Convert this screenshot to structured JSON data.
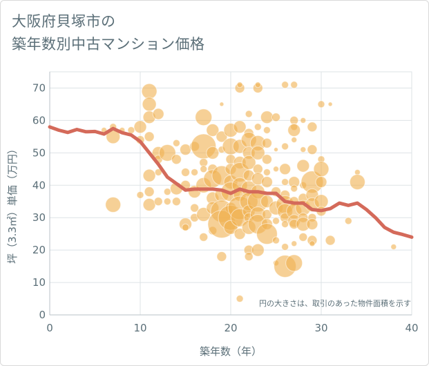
{
  "title": {
    "line1": "大阪府貝塚市の",
    "line2": "築年数別中古マンション価格"
  },
  "colors": {
    "bubble": "#f0b050",
    "line": "#d46a5a",
    "grid": "#dde3e6",
    "text": "#5b6f78"
  },
  "chart_data": {
    "type": "scatter",
    "title": "大阪府貝塚市の築年数別中古マンション価格",
    "xlabel": "築年数（年）",
    "ylabel": "坪（3.3㎡）単価（万円）",
    "xlim": [
      0,
      40
    ],
    "ylim": [
      0,
      75
    ],
    "x_ticks": [
      "0",
      "10",
      "20",
      "30",
      "40"
    ],
    "y_ticks": [
      "0",
      "10",
      "20",
      "30",
      "40",
      "50",
      "60",
      "70"
    ],
    "grid": true,
    "note": "円の大きさは、取引のあった物件面積を示す",
    "series": [
      {
        "type": "line",
        "points": [
          [
            0,
            58
          ],
          [
            1,
            57
          ],
          [
            2,
            56.3
          ],
          [
            3,
            57.2
          ],
          [
            4,
            56.5
          ],
          [
            5,
            56.6
          ],
          [
            6,
            55.8
          ],
          [
            7,
            57.5
          ],
          [
            8,
            56.2
          ],
          [
            9,
            55.5
          ],
          [
            10,
            53.5
          ],
          [
            11,
            50
          ],
          [
            12,
            46.5
          ],
          [
            13,
            42.5
          ],
          [
            14,
            40.5
          ],
          [
            15,
            38.5
          ],
          [
            16,
            38.8
          ],
          [
            17,
            38.8
          ],
          [
            18,
            38.8
          ],
          [
            19,
            38.5
          ],
          [
            20,
            37.5
          ],
          [
            21,
            38.8
          ],
          [
            22,
            38
          ],
          [
            23,
            38
          ],
          [
            24,
            37.5
          ],
          [
            25,
            37.5
          ],
          [
            26,
            35
          ],
          [
            27,
            34.5
          ],
          [
            28,
            34.5
          ],
          [
            29,
            32.5
          ],
          [
            30,
            32.2
          ],
          [
            31,
            32.8
          ],
          [
            32,
            34.5
          ],
          [
            33,
            33.8
          ],
          [
            34,
            34.5
          ],
          [
            35,
            32.5
          ],
          [
            36,
            30
          ],
          [
            37,
            27
          ],
          [
            38,
            25.5
          ],
          [
            39,
            24.8
          ],
          [
            40,
            24
          ]
        ]
      },
      {
        "type": "bubble",
        "points": [
          [
            7,
            34,
            11
          ],
          [
            7,
            55,
            10
          ],
          [
            7,
            58,
            5
          ],
          [
            6,
            57,
            4
          ],
          [
            8,
            57,
            4
          ],
          [
            9,
            57,
            5
          ],
          [
            10,
            58,
            9
          ],
          [
            10,
            54,
            6
          ],
          [
            10,
            37,
            5
          ],
          [
            11,
            69,
            11
          ],
          [
            11,
            65,
            10
          ],
          [
            11,
            61,
            9
          ],
          [
            11,
            55,
            7
          ],
          [
            11,
            43,
            9
          ],
          [
            11,
            34,
            9
          ],
          [
            11,
            38,
            7
          ],
          [
            12,
            62,
            8
          ],
          [
            12,
            50,
            9
          ],
          [
            12,
            48,
            6
          ],
          [
            12,
            44,
            5
          ],
          [
            12,
            35,
            6
          ],
          [
            13,
            50,
            12
          ],
          [
            13,
            38,
            5
          ],
          [
            13,
            35,
            5
          ],
          [
            14,
            53,
            5
          ],
          [
            14,
            48,
            7
          ],
          [
            14,
            39,
            9
          ],
          [
            14,
            35,
            6
          ],
          [
            15,
            51,
            8
          ],
          [
            15,
            44,
            6
          ],
          [
            15,
            40,
            7
          ],
          [
            15,
            28,
            9
          ],
          [
            15,
            27,
            5
          ],
          [
            16,
            52,
            7
          ],
          [
            16,
            44,
            5
          ],
          [
            16,
            38,
            9
          ],
          [
            16,
            33,
            6
          ],
          [
            16,
            30,
            6
          ],
          [
            17,
            61,
            12
          ],
          [
            17,
            52,
            18
          ],
          [
            17,
            47,
            6
          ],
          [
            17,
            45,
            5
          ],
          [
            17,
            40,
            11
          ],
          [
            17,
            31,
            10
          ],
          [
            17,
            24,
            6
          ],
          [
            18,
            57,
            9
          ],
          [
            18,
            50,
            9
          ],
          [
            18,
            45,
            7
          ],
          [
            18,
            42,
            13
          ],
          [
            18,
            36,
            9
          ],
          [
            18,
            33,
            9
          ],
          [
            18,
            26,
            6
          ],
          [
            19,
            65,
            3
          ],
          [
            19,
            55,
            8
          ],
          [
            19,
            51,
            5
          ],
          [
            19,
            43,
            14
          ],
          [
            19,
            37,
            10
          ],
          [
            19,
            32,
            16
          ],
          [
            19,
            28,
            20
          ],
          [
            19,
            18,
            7
          ],
          [
            20,
            57,
            10
          ],
          [
            20,
            52,
            12
          ],
          [
            20,
            48,
            7
          ],
          [
            20,
            45,
            8
          ],
          [
            20,
            41,
            10
          ],
          [
            20,
            38,
            14
          ],
          [
            20,
            33,
            8
          ],
          [
            20,
            30,
            18
          ],
          [
            20,
            27,
            10
          ],
          [
            21,
            70,
            7
          ],
          [
            21,
            71,
            4
          ],
          [
            21,
            58,
            9
          ],
          [
            21,
            52,
            10
          ],
          [
            21,
            47,
            9
          ],
          [
            21,
            44,
            14
          ],
          [
            21,
            40,
            11
          ],
          [
            21,
            37,
            9
          ],
          [
            21,
            33,
            17
          ],
          [
            21,
            30,
            13
          ],
          [
            21,
            25,
            8
          ],
          [
            21,
            5,
            5
          ],
          [
            22,
            62,
            5
          ],
          [
            22,
            56,
            7
          ],
          [
            22,
            54,
            11
          ],
          [
            22,
            50,
            9
          ],
          [
            22,
            47,
            10
          ],
          [
            22,
            43,
            8
          ],
          [
            22,
            39,
            11
          ],
          [
            22,
            35,
            13
          ],
          [
            22,
            32,
            9
          ],
          [
            22,
            30,
            7
          ],
          [
            22,
            27,
            10
          ],
          [
            22,
            20,
            7
          ],
          [
            22,
            18,
            6
          ],
          [
            23,
            70,
            7
          ],
          [
            23,
            71,
            4
          ],
          [
            23,
            58,
            5
          ],
          [
            23,
            53,
            11
          ],
          [
            23,
            50,
            10
          ],
          [
            23,
            45,
            7
          ],
          [
            23,
            42,
            9
          ],
          [
            23,
            38,
            10
          ],
          [
            23,
            35,
            15
          ],
          [
            23,
            31,
            11
          ],
          [
            23,
            28,
            14
          ],
          [
            23,
            20,
            9
          ],
          [
            24,
            61,
            9
          ],
          [
            24,
            57,
            5
          ],
          [
            24,
            53,
            7
          ],
          [
            24,
            48,
            7
          ],
          [
            24,
            44,
            5
          ],
          [
            24,
            41,
            8
          ],
          [
            24,
            35,
            9
          ],
          [
            24,
            31,
            7
          ],
          [
            24,
            28,
            8
          ],
          [
            24,
            25,
            15
          ],
          [
            25,
            61,
            6
          ],
          [
            25,
            51,
            3
          ],
          [
            25,
            45,
            4
          ],
          [
            25,
            38,
            7
          ],
          [
            25,
            33,
            10
          ],
          [
            25,
            29,
            5
          ],
          [
            25,
            23,
            5
          ],
          [
            25,
            16,
            4
          ],
          [
            26,
            71,
            5
          ],
          [
            26,
            52,
            5
          ],
          [
            26,
            45,
            8
          ],
          [
            26,
            41,
            5
          ],
          [
            26,
            37,
            7
          ],
          [
            26,
            34,
            13
          ],
          [
            26,
            32,
            11
          ],
          [
            26,
            30,
            7
          ],
          [
            26,
            28,
            5
          ],
          [
            26,
            21,
            5
          ],
          [
            26,
            15,
            16
          ],
          [
            27,
            71,
            5
          ],
          [
            27,
            60,
            6
          ],
          [
            27,
            58,
            5
          ],
          [
            27,
            57,
            9
          ],
          [
            27,
            54,
            4
          ],
          [
            27,
            41,
            8
          ],
          [
            27,
            39,
            5
          ],
          [
            27,
            35,
            7
          ],
          [
            27,
            32,
            11
          ],
          [
            27,
            29,
            9
          ],
          [
            27,
            28,
            7
          ],
          [
            27,
            16,
            12
          ],
          [
            27,
            22,
            4
          ],
          [
            28,
            60,
            4
          ],
          [
            28,
            51,
            4
          ],
          [
            28,
            46,
            9
          ],
          [
            28,
            40,
            5
          ],
          [
            28,
            36,
            7
          ],
          [
            28,
            33,
            11
          ],
          [
            28,
            30,
            7
          ],
          [
            28,
            28,
            10
          ],
          [
            28,
            24,
            6
          ],
          [
            29,
            58,
            7
          ],
          [
            29,
            51,
            7
          ],
          [
            29,
            41,
            16
          ],
          [
            29,
            37,
            9
          ],
          [
            29,
            34,
            10
          ],
          [
            29,
            30,
            6
          ],
          [
            29,
            28,
            8
          ],
          [
            29,
            23,
            7
          ],
          [
            29,
            22,
            4
          ],
          [
            30,
            65,
            5
          ],
          [
            30,
            48,
            5
          ],
          [
            30,
            45,
            11
          ],
          [
            30,
            41,
            8
          ],
          [
            30,
            35,
            10
          ],
          [
            30,
            32,
            7
          ],
          [
            31,
            65,
            3
          ],
          [
            31,
            23,
            7
          ],
          [
            33,
            29,
            5
          ],
          [
            34,
            44,
            4
          ],
          [
            34,
            41,
            11
          ],
          [
            38,
            21,
            4
          ]
        ]
      }
    ]
  }
}
